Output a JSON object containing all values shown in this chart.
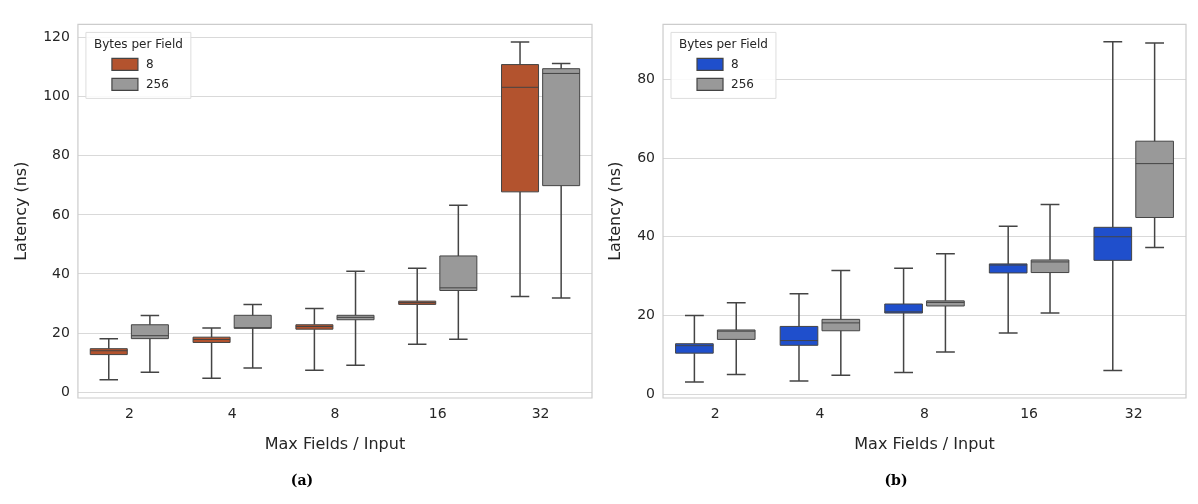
{
  "chart_data": [
    {
      "type": "box",
      "title": "(a)",
      "xlabel": "Max Fields / Input",
      "ylabel": "Latency (ns)",
      "legend_title": "Bytes per Field",
      "legend": "top left",
      "grid": "y",
      "categories": [
        "2",
        "4",
        "8",
        "16",
        "32"
      ],
      "ylim": [
        -2,
        124.5
      ],
      "yticks": [
        0,
        20,
        40,
        60,
        80,
        100,
        120
      ],
      "series": [
        {
          "name": "8",
          "color": "#b3532e",
          "boxes": [
            {
              "low": 4.2,
              "q1": 12.7,
              "median": 14,
              "q3": 14.7,
              "high": 18.1
            },
            {
              "low": 4.7,
              "q1": 16.8,
              "median": 17.8,
              "q3": 18.6,
              "high": 21.7
            },
            {
              "low": 7.4,
              "q1": 21.3,
              "median": 22.2,
              "q3": 22.8,
              "high": 28.3
            },
            {
              "low": 16.2,
              "q1": 29.7,
              "median": 30.3,
              "q3": 30.8,
              "high": 41.9
            },
            {
              "low": 32.4,
              "q1": 67.8,
              "median": 103.2,
              "q3": 110.9,
              "high": 118.5
            }
          ]
        },
        {
          "name": "256",
          "color": "#999999",
          "boxes": [
            {
              "low": 6.7,
              "q1": 18.1,
              "median": 19.1,
              "q3": 22.8,
              "high": 25.9
            },
            {
              "low": 8.2,
              "q1": 21.6,
              "median": 21.8,
              "q3": 26,
              "high": 29.7
            },
            {
              "low": 9.1,
              "q1": 24.5,
              "median": 25.3,
              "q3": 26,
              "high": 40.9
            },
            {
              "low": 17.9,
              "q1": 34.4,
              "median": 35.3,
              "q3": 46.1,
              "high": 63.3
            },
            {
              "low": 31.9,
              "q1": 69.9,
              "median": 107.9,
              "q3": 109.5,
              "high": 111.3
            }
          ]
        }
      ]
    },
    {
      "type": "box",
      "title": "(b)",
      "xlabel": "Max Fields / Input",
      "ylabel": "Latency (ns)",
      "legend_title": "Bytes per Field",
      "legend": "top left",
      "grid": "y",
      "categories": [
        "2",
        "4",
        "8",
        "16",
        "32"
      ],
      "ylim": [
        -1,
        94
      ],
      "yticks": [
        0,
        20,
        40,
        60,
        80
      ],
      "series": [
        {
          "name": "8",
          "color": "#1f4fcc",
          "boxes": [
            {
              "low": 3.1,
              "q1": 10.4,
              "median": 12.3,
              "q3": 12.8,
              "high": 20
            },
            {
              "low": 3.3,
              "q1": 12.4,
              "median": 13.6,
              "q3": 17.2,
              "high": 25.5
            },
            {
              "low": 5.5,
              "q1": 20.6,
              "median": 20.9,
              "q3": 22.9,
              "high": 32
            },
            {
              "low": 15.5,
              "q1": 30.8,
              "median": 32.8,
              "q3": 33.1,
              "high": 42.7
            },
            {
              "low": 6,
              "q1": 34,
              "median": 40,
              "q3": 42.4,
              "high": 89.6
            }
          ]
        },
        {
          "name": "256",
          "color": "#999999",
          "boxes": [
            {
              "low": 5,
              "q1": 13.9,
              "median": 16,
              "q3": 16.3,
              "high": 23.2
            },
            {
              "low": 4.8,
              "q1": 16.1,
              "median": 18.1,
              "q3": 19,
              "high": 31.4
            },
            {
              "low": 10.7,
              "q1": 22.4,
              "median": 23.3,
              "q3": 23.7,
              "high": 35.7
            },
            {
              "low": 20.6,
              "q1": 30.9,
              "median": 33.6,
              "q3": 34.1,
              "high": 48.2
            },
            {
              "low": 37.3,
              "q1": 44.9,
              "median": 58.6,
              "q3": 64.3,
              "high": 89.3
            }
          ]
        }
      ]
    }
  ]
}
